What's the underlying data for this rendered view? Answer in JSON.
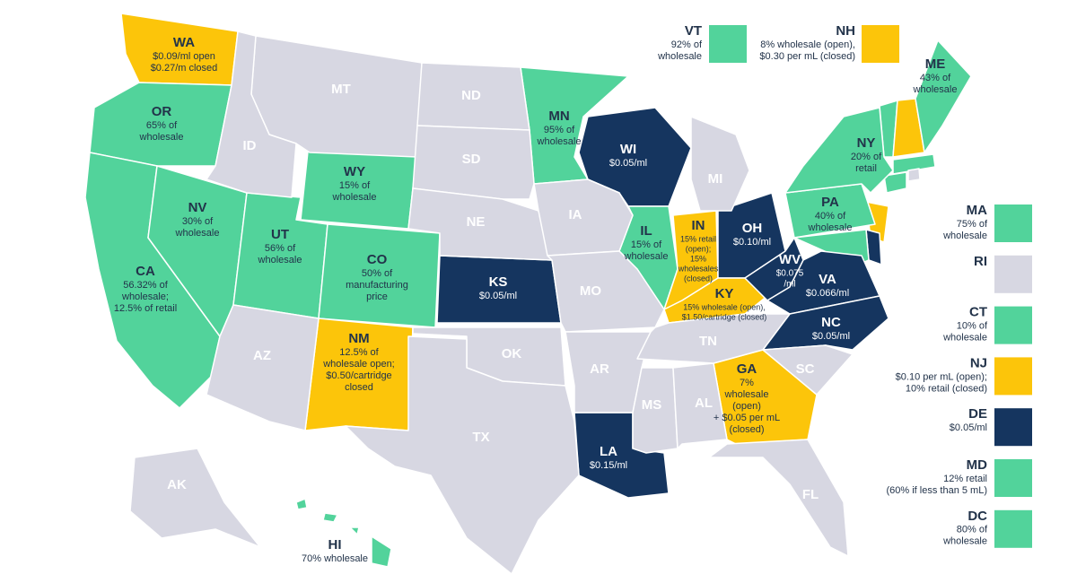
{
  "states": [
    {
      "code": "WA",
      "lines": [
        "$0.09/ml open",
        "$0.27/m closed"
      ],
      "color": "#fcc50a"
    },
    {
      "code": "OR",
      "lines": [
        "65% of",
        "wholesale"
      ],
      "color": "#52d39b"
    },
    {
      "code": "CA",
      "lines": [
        "56.32% of",
        "wholesale;",
        "12.5% of retail"
      ],
      "color": "#52d39b"
    },
    {
      "code": "NV",
      "lines": [
        "30% of",
        "wholesale"
      ],
      "color": "#52d39b"
    },
    {
      "code": "WY",
      "lines": [
        "15% of",
        "wholesale"
      ],
      "color": "#52d39b"
    },
    {
      "code": "UT",
      "lines": [
        "56% of",
        "wholesale"
      ],
      "color": "#52d39b"
    },
    {
      "code": "CO",
      "lines": [
        "50% of",
        "manufacturing",
        "price"
      ],
      "color": "#52d39b"
    },
    {
      "code": "NM",
      "lines": [
        "12.5% of",
        "wholesale open;",
        "$0.50/cartridge",
        "closed"
      ],
      "color": "#fcc50a"
    },
    {
      "code": "MN",
      "lines": [
        "95% of",
        "wholesale"
      ],
      "color": "#52d39b"
    },
    {
      "code": "WI",
      "lines": [
        "$0.05/ml"
      ],
      "color": "#15355f"
    },
    {
      "code": "IL",
      "lines": [
        "15% of",
        "wholesale"
      ],
      "color": "#52d39b"
    },
    {
      "code": "IN",
      "lines": [
        "15% retail",
        "(open);",
        "15%",
        "wholesales",
        "(closed)"
      ],
      "color": "#fcc50a"
    },
    {
      "code": "KS",
      "lines": [
        "$0.05/ml"
      ],
      "color": "#15355f"
    },
    {
      "code": "OH",
      "lines": [
        "$0.10/ml"
      ],
      "color": "#15355f"
    },
    {
      "code": "KY",
      "lines": [
        "15% wholesale (open),",
        "$1.50/cartridge (closed)"
      ],
      "color": "#fcc50a"
    },
    {
      "code": "WV",
      "lines": [
        "$0.075",
        "/ml"
      ],
      "color": "#15355f"
    },
    {
      "code": "VA",
      "lines": [
        "$0.066/ml"
      ],
      "color": "#15355f"
    },
    {
      "code": "NC",
      "lines": [
        "$0.05/ml"
      ],
      "color": "#15355f"
    },
    {
      "code": "GA",
      "lines": [
        "7%",
        "wholesale",
        "(open)",
        "+ $0.05 per mL",
        "(closed)"
      ],
      "color": "#fcc50a"
    },
    {
      "code": "LA",
      "lines": [
        "$0.15/ml"
      ],
      "color": "#15355f"
    },
    {
      "code": "PA",
      "lines": [
        "40% of",
        "wholesale"
      ],
      "color": "#52d39b"
    },
    {
      "code": "NY",
      "lines": [
        "20% of",
        "retail"
      ],
      "color": "#52d39b"
    },
    {
      "code": "ME",
      "lines": [
        "43% of",
        "wholesale"
      ],
      "color": "#52d39b"
    },
    {
      "code": "HI",
      "lines": [
        "70% wholesale"
      ],
      "color": "#52d39b"
    },
    {
      "code": "MT",
      "lines": [],
      "color": "#d7d7e2"
    },
    {
      "code": "ID",
      "lines": [],
      "color": "#d7d7e2"
    },
    {
      "code": "ND",
      "lines": [],
      "color": "#d7d7e2"
    },
    {
      "code": "SD",
      "lines": [],
      "color": "#d7d7e2"
    },
    {
      "code": "NE",
      "lines": [],
      "color": "#d7d7e2"
    },
    {
      "code": "IA",
      "lines": [],
      "color": "#d7d7e2"
    },
    {
      "code": "MO",
      "lines": [],
      "color": "#d7d7e2"
    },
    {
      "code": "OK",
      "lines": [],
      "color": "#d7d7e2"
    },
    {
      "code": "TX",
      "lines": [],
      "color": "#d7d7e2"
    },
    {
      "code": "AR",
      "lines": [],
      "color": "#d7d7e2"
    },
    {
      "code": "MS",
      "lines": [],
      "color": "#d7d7e2"
    },
    {
      "code": "AL",
      "lines": [],
      "color": "#d7d7e2"
    },
    {
      "code": "TN",
      "lines": [],
      "color": "#d7d7e2"
    },
    {
      "code": "SC",
      "lines": [],
      "color": "#d7d7e2"
    },
    {
      "code": "FL",
      "lines": [],
      "color": "#d7d7e2"
    },
    {
      "code": "MI",
      "lines": [],
      "color": "#d7d7e2"
    },
    {
      "code": "AZ",
      "lines": [],
      "color": "#d7d7e2"
    },
    {
      "code": "AK",
      "lines": [],
      "color": "#d7d7e2"
    }
  ],
  "legend": [
    {
      "code": "VT",
      "lines": [
        "92% of",
        "wholesale"
      ],
      "color": "#52d39b"
    },
    {
      "code": "NH",
      "lines": [
        "8% wholesale (open),",
        "$0.30 per mL (closed)"
      ],
      "color": "#fcc50a"
    },
    {
      "code": "MA",
      "lines": [
        "75% of",
        "wholesale"
      ],
      "color": "#52d39b"
    },
    {
      "code": "RI",
      "lines": [],
      "color": "#d7d7e2"
    },
    {
      "code": "CT",
      "lines": [
        "10% of",
        "wholesale"
      ],
      "color": "#52d39b"
    },
    {
      "code": "NJ",
      "lines": [
        "$0.10 per mL (open);",
        "10% retail (closed)"
      ],
      "color": "#fcc50a"
    },
    {
      "code": "DE",
      "lines": [
        "$0.05/ml"
      ],
      "color": "#15355f"
    },
    {
      "code": "MD",
      "lines": [
        "12% retail",
        "(60% if less than 5 mL)"
      ],
      "color": "#52d39b"
    },
    {
      "code": "DC",
      "lines": [
        "80% of",
        "wholesale"
      ],
      "color": "#52d39b"
    }
  ]
}
